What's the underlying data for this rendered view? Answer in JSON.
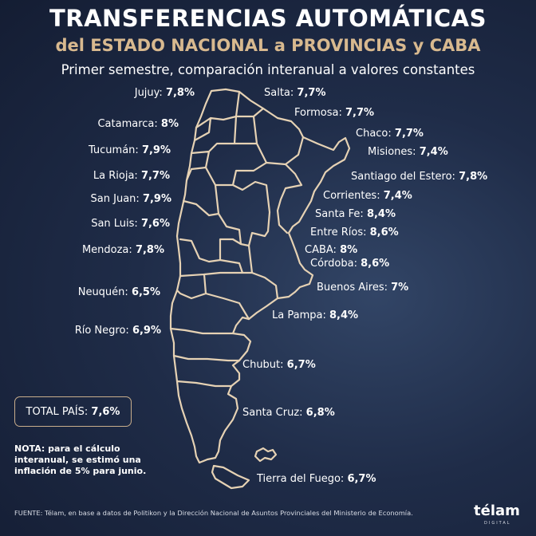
{
  "title": "TRANSFERENCIAS AUTOMÁTICAS",
  "title_line2": "del ESTADO NACIONAL a PROVINCIAS y CABA",
  "subtitle": "Primer semestre, comparación interanual a valores constantes",
  "colors": {
    "background": "#1f2c48",
    "accent": "#d8b98f",
    "map_outline": "#e6d2b4",
    "text": "#ffffff"
  },
  "chart_data": {
    "type": "map",
    "unit": "%",
    "provinces": [
      {
        "name": "Jujuy",
        "label": "Jujuy:",
        "value": 7.8,
        "display": "7,8%"
      },
      {
        "name": "Salta",
        "label": "Salta:",
        "value": 7.7,
        "display": "7,7%"
      },
      {
        "name": "Formosa",
        "label": "Formosa:",
        "value": 7.7,
        "display": "7,7%"
      },
      {
        "name": "Catamarca",
        "label": "Catamarca:",
        "value": 8.0,
        "display": "8%"
      },
      {
        "name": "Chaco",
        "label": "Chaco:",
        "value": 7.7,
        "display": "7,7%"
      },
      {
        "name": "Tucumán",
        "label": "Tucumán:",
        "value": 7.9,
        "display": "7,9%"
      },
      {
        "name": "Misiones",
        "label": "Misiones:",
        "value": 7.4,
        "display": "7,4%"
      },
      {
        "name": "La Rioja",
        "label": "La Rioja:",
        "value": 7.7,
        "display": "7,7%"
      },
      {
        "name": "Santiago del Estero",
        "label": "Santiago del Estero:",
        "value": 7.8,
        "display": "7,8%"
      },
      {
        "name": "San Juan",
        "label": "San Juan:",
        "value": 7.9,
        "display": "7,9%"
      },
      {
        "name": "Corrientes",
        "label": "Corrientes:",
        "value": 7.4,
        "display": "7,4%"
      },
      {
        "name": "San Luis",
        "label": "San Luis:",
        "value": 7.6,
        "display": "7,6%"
      },
      {
        "name": "Santa Fe",
        "label": "Santa Fe:",
        "value": 8.4,
        "display": "8,4%"
      },
      {
        "name": "Entre Ríos",
        "label": "Entre Ríos:",
        "value": 8.6,
        "display": "8,6%"
      },
      {
        "name": "Mendoza",
        "label": "Mendoza:",
        "value": 7.8,
        "display": "7,8%"
      },
      {
        "name": "CABA",
        "label": "CABA:",
        "value": 8.0,
        "display": "8%"
      },
      {
        "name": "Córdoba",
        "label": "Córdoba:",
        "value": 8.6,
        "display": "8,6%"
      },
      {
        "name": "Buenos Aires",
        "label": "Buenos Aires:",
        "value": 7.0,
        "display": "7%"
      },
      {
        "name": "Neuquén",
        "label": "Neuquén:",
        "value": 6.5,
        "display": "6,5%"
      },
      {
        "name": "La Pampa",
        "label": "La Pampa:",
        "value": 8.4,
        "display": "8,4%"
      },
      {
        "name": "Río Negro",
        "label": "Río Negro:",
        "value": 6.9,
        "display": "6,9%"
      },
      {
        "name": "Chubut",
        "label": "Chubut:",
        "value": 6.7,
        "display": "6,7%"
      },
      {
        "name": "Santa Cruz",
        "label": "Santa Cruz:",
        "value": 6.8,
        "display": "6,8%"
      },
      {
        "name": "Tierra del Fuego",
        "label": "Tierra del Fuego:",
        "value": 6.7,
        "display": "6,7%"
      }
    ],
    "total": {
      "label": "TOTAL PAÍS:",
      "value": 7.6,
      "display": "7,6%"
    }
  },
  "note": "NOTA: para el cálculo interanual, se estimó una inflación de 5% para junio.",
  "source": "FUENTE: Télam, en base a datos de Politikon y la Dirección Nacional de Asuntos Provinciales del Ministerio de Economía.",
  "logo": {
    "name": "télam",
    "sub": "DIGITAL"
  }
}
